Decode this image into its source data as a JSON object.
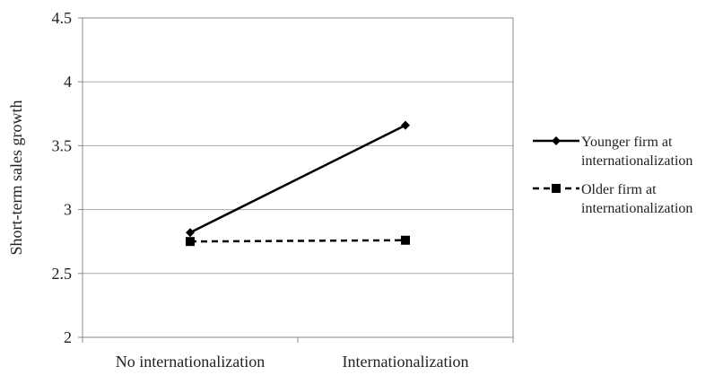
{
  "chart_data": {
    "type": "line",
    "title": "",
    "xlabel": "",
    "ylabel": "Short-term sales growth",
    "categories": [
      "No internationalization",
      "Internationalization"
    ],
    "ylim": [
      2,
      4.5
    ],
    "yticks": [
      "2",
      "2.5",
      "3",
      "3.5",
      "4",
      "4.5"
    ],
    "grid": true,
    "legend_position": "right",
    "series": [
      {
        "name_lines": [
          "Younger firm at",
          "internationalization"
        ],
        "values": [
          2.82,
          3.66
        ],
        "marker": "diamond",
        "line_style": "solid",
        "color": "#000000"
      },
      {
        "name_lines": [
          "Older firm at",
          "internationalization"
        ],
        "values": [
          2.75,
          2.76
        ],
        "marker": "square",
        "line_style": "dashed",
        "color": "#000000"
      }
    ]
  }
}
